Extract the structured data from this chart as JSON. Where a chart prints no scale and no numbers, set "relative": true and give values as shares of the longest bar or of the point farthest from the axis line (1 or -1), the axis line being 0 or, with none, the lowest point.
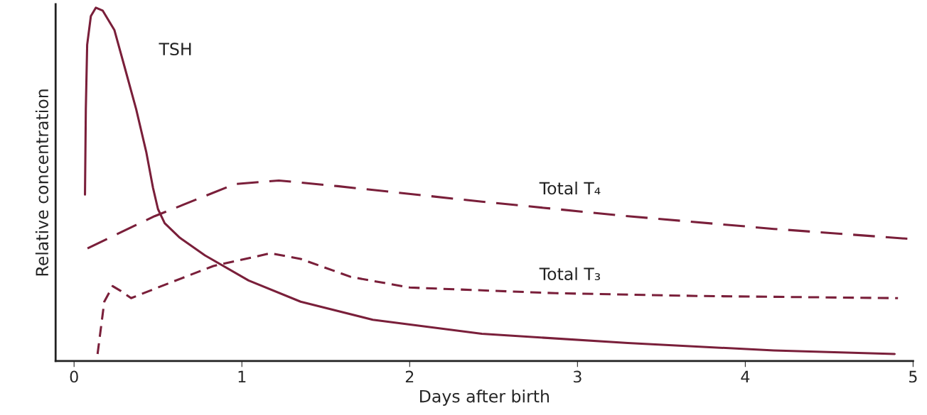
{
  "chart_data": {
    "type": "line",
    "xlabel": "Days after birth",
    "ylabel": "Relative concentration",
    "relative": true,
    "xlim": [
      -0.11,
      5.0
    ],
    "xticks": [
      0,
      1,
      2,
      3,
      4,
      5
    ],
    "grid": false,
    "marker": "none",
    "series": [
      {
        "color": "#7a1f3a",
        "line_style": "solid",
        "x": [
          0.065,
          0.07,
          0.078,
          0.1,
          0.13,
          0.17,
          0.24,
          0.3,
          0.37,
          0.43,
          0.47,
          0.5,
          0.54,
          0.63,
          0.78,
          1.04,
          1.35,
          1.78,
          2.43,
          3.3,
          4.17,
          4.89
        ],
        "values": [
          0.471,
          0.713,
          0.895,
          0.976,
          1.0,
          0.992,
          0.937,
          0.834,
          0.713,
          0.592,
          0.491,
          0.43,
          0.39,
          0.349,
          0.299,
          0.228,
          0.168,
          0.117,
          0.077,
          0.051,
          0.03,
          0.02
        ]
      },
      {
        "color": "#7a1f3a",
        "line_style": "longdash",
        "x": [
          0.08,
          0.48,
          0.96,
          1.22,
          1.57,
          2.43,
          3.3,
          4.17,
          5.0
        ],
        "values": [
          0.319,
          0.41,
          0.501,
          0.511,
          0.495,
          0.451,
          0.41,
          0.374,
          0.345
        ]
      },
      {
        "color": "#7a1f3a",
        "line_style": "dashed",
        "x": [
          0.14,
          0.18,
          0.23,
          0.28,
          0.34,
          0.52,
          0.83,
          1.17,
          1.35,
          1.65,
          2.0,
          2.87,
          3.74,
          4.91
        ],
        "values": [
          0.02,
          0.168,
          0.212,
          0.198,
          0.178,
          0.212,
          0.269,
          0.305,
          0.289,
          0.238,
          0.208,
          0.192,
          0.184,
          0.178
        ]
      }
    ],
    "annotations": [
      "TSH",
      "Total T₄",
      "Total T₃"
    ]
  }
}
